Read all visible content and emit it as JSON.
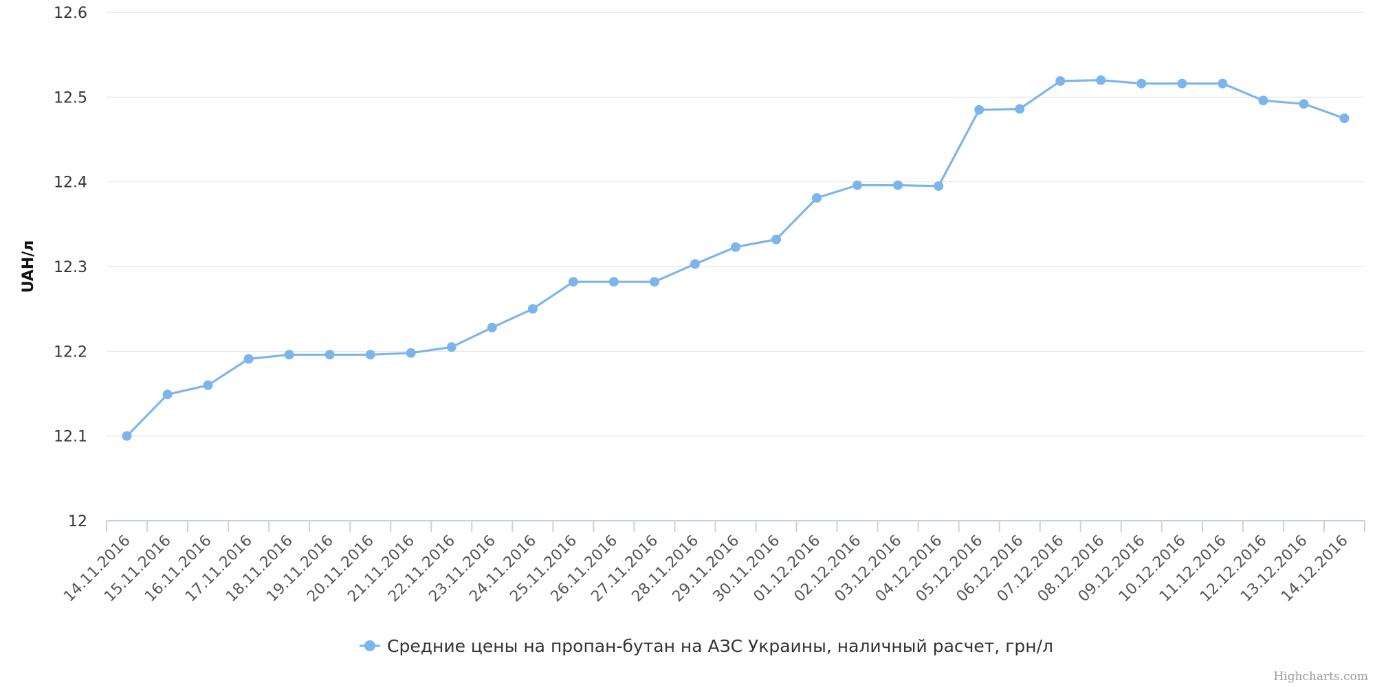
{
  "chart_data": {
    "type": "line",
    "title": "",
    "xlabel": "",
    "ylabel": "UAH/л",
    "ylim": [
      12,
      12.6
    ],
    "yticks": [
      "12",
      "12.1",
      "12.2",
      "12.3",
      "12.4",
      "12.5",
      "12.6"
    ],
    "grid": true,
    "legend_position": "bottom-center",
    "colors": {
      "series": "#7cb5ec",
      "grid": "#e4e4e4",
      "axis": "#c7d1e6"
    },
    "categories": [
      "14.11.2016",
      "15.11.2016",
      "16.11.2016",
      "17.11.2016",
      "18.11.2016",
      "19.11.2016",
      "20.11.2016",
      "21.11.2016",
      "22.11.2016",
      "23.11.2016",
      "24.11.2016",
      "25.11.2016",
      "26.11.2016",
      "27.11.2016",
      "28.11.2016",
      "29.11.2016",
      "30.11.2016",
      "01.12.2016",
      "02.12.2016",
      "03.12.2016",
      "04.12.2016",
      "05.12.2016",
      "06.12.2016",
      "07.12.2016",
      "08.12.2016",
      "09.12.2016",
      "10.12.2016",
      "11.12.2016",
      "12.12.2016",
      "13.12.2016",
      "14.12.2016"
    ],
    "series": [
      {
        "name": "Средние цены на пропан-бутан на АЗС Украины, наличный расчет, грн/л",
        "values": [
          12.1,
          12.149,
          12.16,
          12.191,
          12.196,
          12.196,
          12.196,
          12.198,
          12.205,
          12.228,
          12.25,
          12.282,
          12.282,
          12.282,
          12.303,
          12.323,
          12.332,
          12.381,
          12.396,
          12.396,
          12.395,
          12.485,
          12.486,
          12.519,
          12.52,
          12.516,
          12.516,
          12.516,
          12.496,
          12.492,
          12.475
        ]
      }
    ]
  },
  "credits": "Highcharts.com"
}
